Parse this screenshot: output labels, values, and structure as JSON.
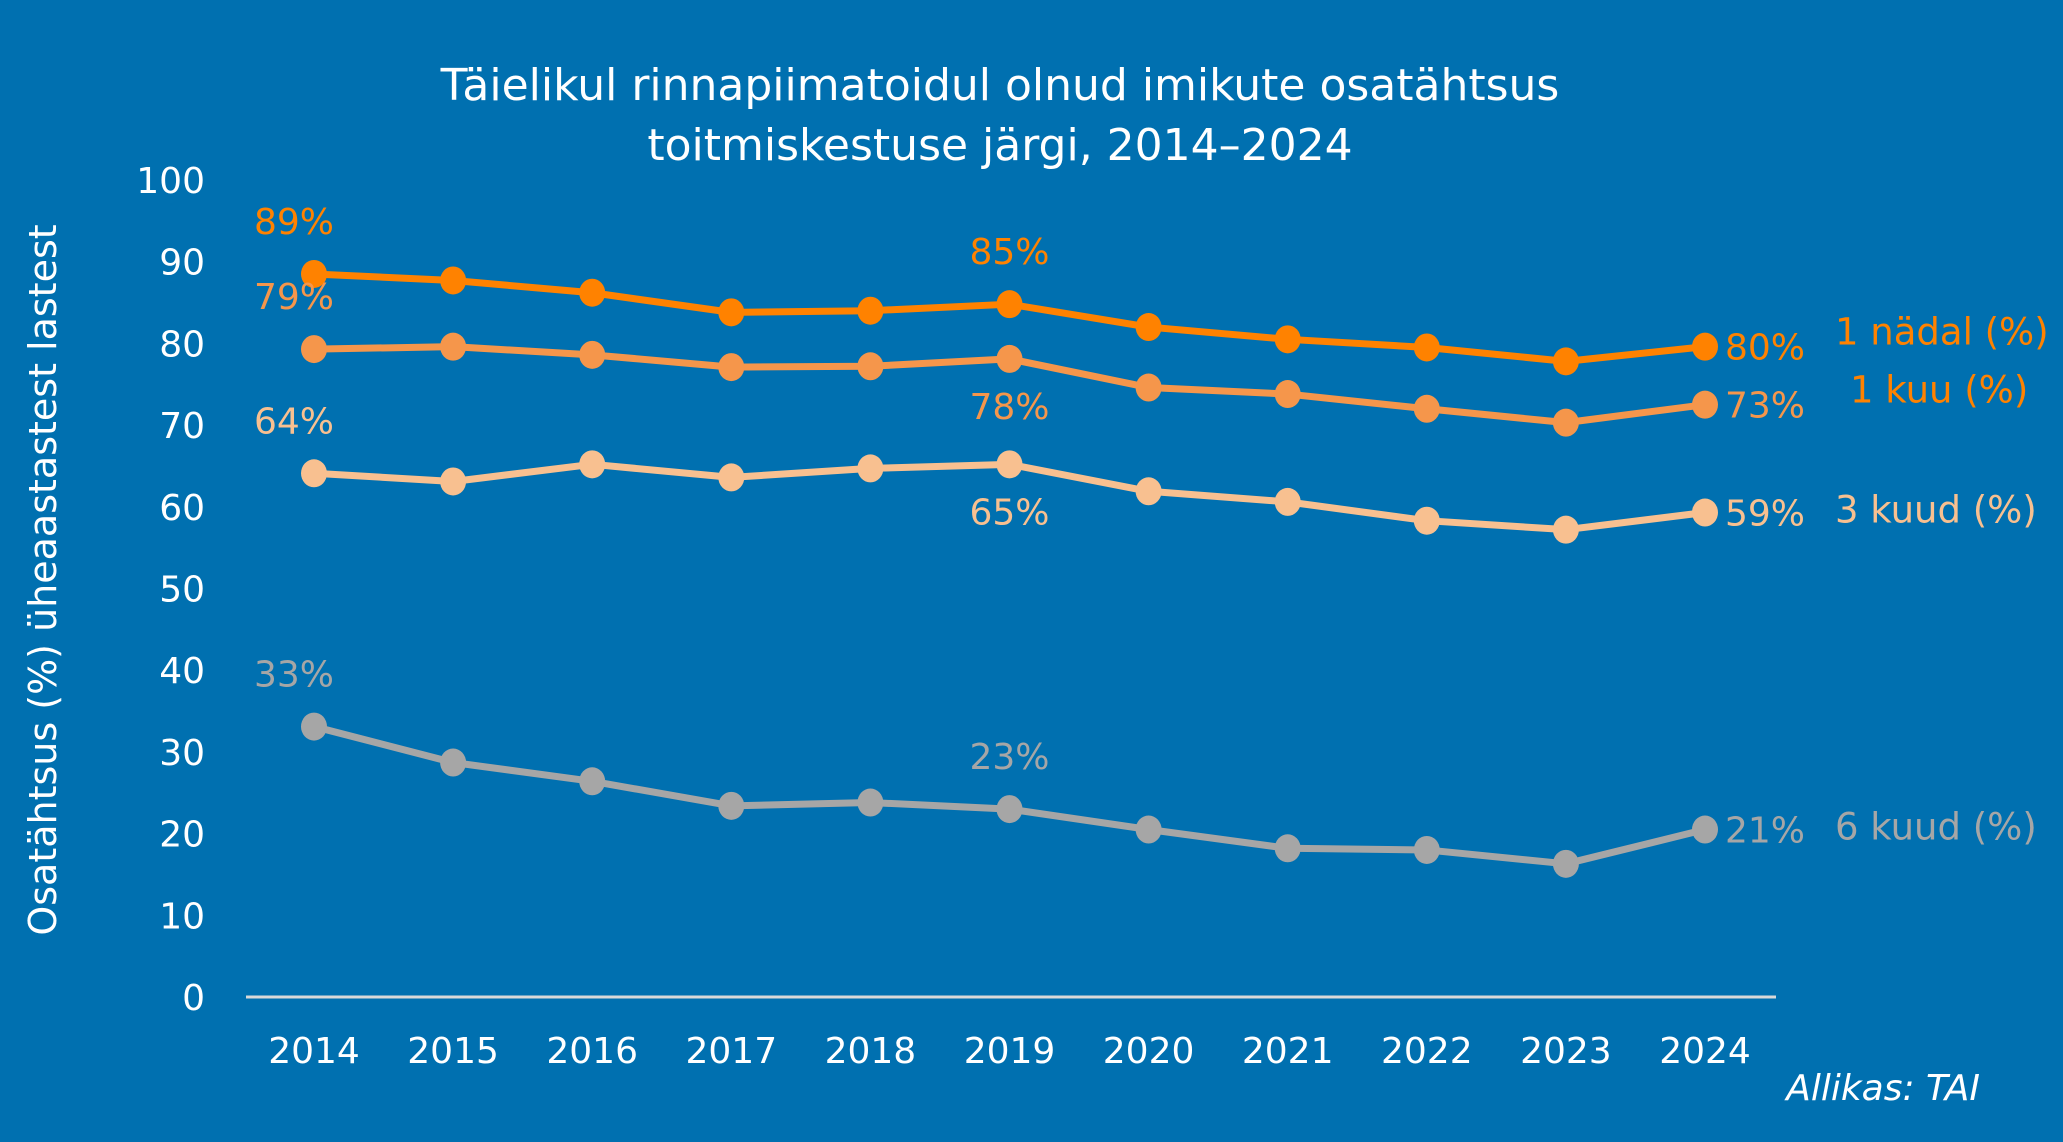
{
  "chart_data": {
    "type": "line",
    "title": "Täielikul rinnapiimatoidul olnud imikute osatähtsus toitmiskestuse järgi, 2014–2024",
    "title_lines": [
      "Täielikul rinnapiimatoidul olnud imikute osatähtsus",
      "toitmiskestuse järgi, 2014–2024"
    ],
    "xlabel": "",
    "ylabel": "Osatähtsus (%) üheaastastest lastest",
    "ylim": [
      0,
      100
    ],
    "yticks": [
      0,
      10,
      20,
      30,
      40,
      50,
      60,
      70,
      80,
      90,
      100
    ],
    "grid": false,
    "legend_placement": "right (inline series labels)",
    "x": [
      "2014",
      "2015",
      "2016",
      "2017",
      "2018",
      "2019",
      "2020",
      "2021",
      "2022",
      "2023",
      "2024"
    ],
    "series": [
      {
        "name": "1 nädal (%)",
        "color": "#FF8200",
        "values": [
          88.5,
          87.7,
          86.2,
          83.8,
          84.0,
          84.8,
          82.0,
          80.5,
          79.5,
          77.8,
          79.6
        ],
        "labels": [
          {
            "index": 0,
            "text": "89%",
            "pos": "above"
          },
          {
            "index": 5,
            "text": "85%",
            "pos": "above"
          },
          {
            "index": 10,
            "text": "80%",
            "pos": "right"
          }
        ]
      },
      {
        "name": "1 kuu (%)",
        "color": "#F5964B",
        "values": [
          79.3,
          79.6,
          78.6,
          77.1,
          77.2,
          78.1,
          74.6,
          73.8,
          72.0,
          70.3,
          72.5
        ],
        "labels": [
          {
            "index": 0,
            "text": "79%",
            "pos": "above"
          },
          {
            "index": 5,
            "text": "78%",
            "pos": "below"
          },
          {
            "index": 10,
            "text": "73%",
            "pos": "right"
          }
        ]
      },
      {
        "name": "3 kuud (%)",
        "color": "#F8C090",
        "values": [
          64.1,
          63.1,
          65.2,
          63.6,
          64.7,
          65.2,
          61.9,
          60.6,
          58.3,
          57.2,
          59.3
        ],
        "labels": [
          {
            "index": 0,
            "text": "64%",
            "pos": "above"
          },
          {
            "index": 5,
            "text": "65%",
            "pos": "below"
          },
          {
            "index": 10,
            "text": "59%",
            "pos": "right"
          }
        ]
      },
      {
        "name": "6 kuud (%)",
        "color": "#A6A6A6",
        "values": [
          33.1,
          28.7,
          26.4,
          23.4,
          23.8,
          23.0,
          20.5,
          18.2,
          18.0,
          16.3,
          20.5
        ],
        "labels": [
          {
            "index": 0,
            "text": "33%",
            "pos": "above"
          },
          {
            "index": 5,
            "text": "23%",
            "pos": "above"
          },
          {
            "index": 10,
            "text": "21%",
            "pos": "right"
          }
        ]
      }
    ],
    "source": "Allikas: TAI"
  },
  "colors": {
    "background": "#0070B0",
    "text": "#FFFFFF",
    "axis": "#D9D9D9"
  }
}
